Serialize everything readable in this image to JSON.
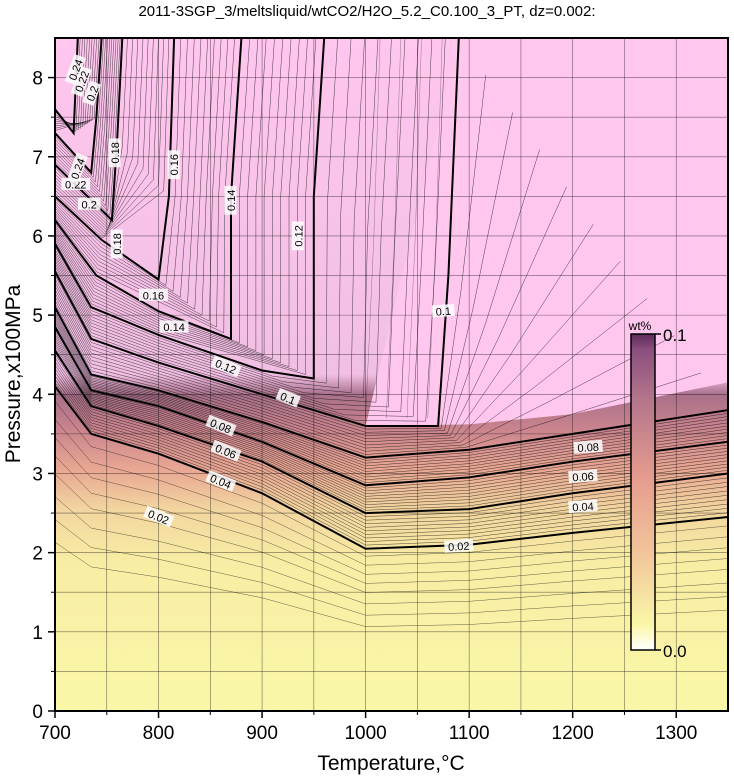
{
  "chart_data": {
    "type": "contour",
    "title": "2011-3SGP_3/meltsliquid/wtCO2/H2O_5.2_C0.100_3_PT, dz=0.002:",
    "xlabel": "Temperature,°C",
    "ylabel": "Pressure,x100MPa",
    "xlim": [
      700,
      1350
    ],
    "ylim": [
      0,
      8.5
    ],
    "x_ticks": [
      "700",
      "800",
      "900",
      "1000",
      "1100",
      "1200",
      "1300"
    ],
    "y_ticks": [
      "0",
      "1",
      "2",
      "3",
      "4",
      "5",
      "6",
      "7",
      "8"
    ],
    "grid": true,
    "colorbar": {
      "label": "wt%",
      "min_label": "0.0",
      "max_label": "0.1",
      "range": [
        0,
        0.1
      ],
      "colors": [
        "#faf7a8",
        "#f2c69b",
        "#e59b8e",
        "#b2748b",
        "#8a4f7e",
        "#ffc6ee"
      ]
    },
    "contour_interval": 0.002,
    "major_contours": [
      {
        "level": "0.02",
        "points": [
          [
            700,
            4.1
          ],
          [
            735,
            3.5
          ],
          [
            800,
            3.25
          ],
          [
            900,
            2.75
          ],
          [
            1000,
            2.05
          ],
          [
            1100,
            2.1
          ],
          [
            1200,
            2.25
          ],
          [
            1350,
            2.45
          ]
        ],
        "label_at": [
          [
            800,
            2.45
          ],
          [
            1090,
            2.08
          ]
        ]
      },
      {
        "level": "0.04",
        "points": [
          [
            700,
            4.55
          ],
          [
            735,
            3.85
          ],
          [
            800,
            3.6
          ],
          [
            900,
            3.15
          ],
          [
            1000,
            2.5
          ],
          [
            1100,
            2.55
          ],
          [
            1200,
            2.75
          ],
          [
            1350,
            3.0
          ]
        ],
        "label_at": [
          [
            860,
            2.9
          ],
          [
            1210,
            2.58
          ]
        ]
      },
      {
        "level": "0.06",
        "points": [
          [
            700,
            4.85
          ],
          [
            735,
            4.05
          ],
          [
            800,
            3.85
          ],
          [
            900,
            3.4
          ],
          [
            1000,
            2.85
          ],
          [
            1100,
            2.95
          ],
          [
            1200,
            3.15
          ],
          [
            1350,
            3.4
          ]
        ],
        "label_at": [
          [
            865,
            3.28
          ],
          [
            1210,
            2.96
          ]
        ]
      },
      {
        "level": "0.08",
        "points": [
          [
            700,
            5.1
          ],
          [
            735,
            4.25
          ],
          [
            800,
            4.05
          ],
          [
            900,
            3.65
          ],
          [
            1000,
            3.2
          ],
          [
            1100,
            3.3
          ],
          [
            1200,
            3.5
          ],
          [
            1350,
            3.8
          ]
        ],
        "label_at": [
          [
            860,
            3.6
          ],
          [
            1215,
            3.33
          ]
        ]
      },
      {
        "level": "0.1",
        "points": [
          [
            700,
            5.55
          ],
          [
            735,
            4.7
          ],
          [
            800,
            4.4
          ],
          [
            900,
            4.0
          ],
          [
            1000,
            3.6
          ],
          [
            1070,
            3.6
          ],
          [
            1080,
            5.5
          ],
          [
            1090,
            8.5
          ]
        ],
        "label_at": [
          [
            1075,
            5.05
          ],
          [
            925,
            3.95
          ]
        ]
      },
      {
        "level": "0.12",
        "points": [
          [
            700,
            5.9
          ],
          [
            735,
            5.1
          ],
          [
            800,
            4.75
          ],
          [
            900,
            4.3
          ],
          [
            950,
            4.2
          ],
          [
            950,
            6.5
          ],
          [
            960,
            8.5
          ]
        ],
        "label_at": [
          [
            935,
            6.0
          ],
          [
            865,
            4.35
          ]
        ]
      },
      {
        "level": "0.14",
        "points": [
          [
            700,
            6.2
          ],
          [
            740,
            5.5
          ],
          [
            800,
            5.05
          ],
          [
            870,
            4.7
          ],
          [
            870,
            6.5
          ],
          [
            880,
            8.5
          ]
        ],
        "label_at": [
          [
            870,
            6.45
          ],
          [
            815,
            4.85
          ]
        ]
      },
      {
        "level": "0.16",
        "points": [
          [
            700,
            6.5
          ],
          [
            745,
            5.95
          ],
          [
            800,
            5.45
          ],
          [
            810,
            6.5
          ],
          [
            815,
            8.5
          ]
        ],
        "label_at": [
          [
            815,
            6.9
          ],
          [
            795,
            5.25
          ]
        ]
      },
      {
        "level": "0.18",
        "points": [
          [
            700,
            6.9
          ],
          [
            755,
            6.2
          ],
          [
            760,
            7.2
          ],
          [
            765,
            8.5
          ]
        ],
        "label_at": [
          [
            760,
            5.9
          ],
          [
            758,
            7.05
          ]
        ]
      },
      {
        "level": "0.2",
        "points": [
          [
            700,
            7.3
          ],
          [
            735,
            6.8
          ],
          [
            740,
            7.5
          ],
          [
            745,
            8.5
          ]
        ],
        "label_at": [
          [
            733,
            6.4
          ]
        ]
      },
      {
        "level": "0.22",
        "points": [
          [
            700,
            7.6
          ],
          [
            718,
            7.3
          ],
          [
            722,
            8.5
          ]
        ],
        "label_at": [
          [
            720,
            6.65
          ]
        ]
      }
    ],
    "crowded_labels": [
      {
        "text": "0.24",
        "at": [
          722,
          6.85
        ]
      },
      {
        "text": "0.2",
        "at": [
          736,
          7.8
        ]
      },
      {
        "text": "0.22",
        "at": [
          726,
          7.95
        ]
      },
      {
        "text": "0.24",
        "at": [
          720,
          8.1
        ]
      }
    ]
  }
}
